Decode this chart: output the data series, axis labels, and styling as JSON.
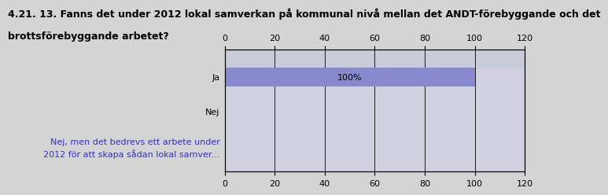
{
  "title_line1": "4.21. 13. Fanns det under 2012 lokal samverkan på kommunal nivå mellan det ANDT-förebyggande och det",
  "title_line2": "brottsförebyggande arbetet?",
  "categories": [
    "Ja",
    "Nej",
    "Nej, men det bedrevs ett arbete under\n2012 för att skapa sådan lokal samver..."
  ],
  "values": [
    100,
    0,
    0
  ],
  "bar_color": "#8888cc",
  "bar_label": "100%",
  "bar_label_color": "#000000",
  "xlim": [
    0,
    120
  ],
  "xticks": [
    0,
    20,
    40,
    60,
    80,
    100,
    120
  ],
  "bg_color": "#d4d4d4",
  "plot_bg_color_left": "#d0d0e0",
  "plot_bg_color_right": "#e8e8f4",
  "top_band_color": "#c8c8d8",
  "title_fontsize": 9,
  "tick_fontsize": 8,
  "ylabel_color_normal": "#000000",
  "ylabel_color_special": "#3333bb",
  "grid_color": "#000000",
  "bar_height": 0.55
}
